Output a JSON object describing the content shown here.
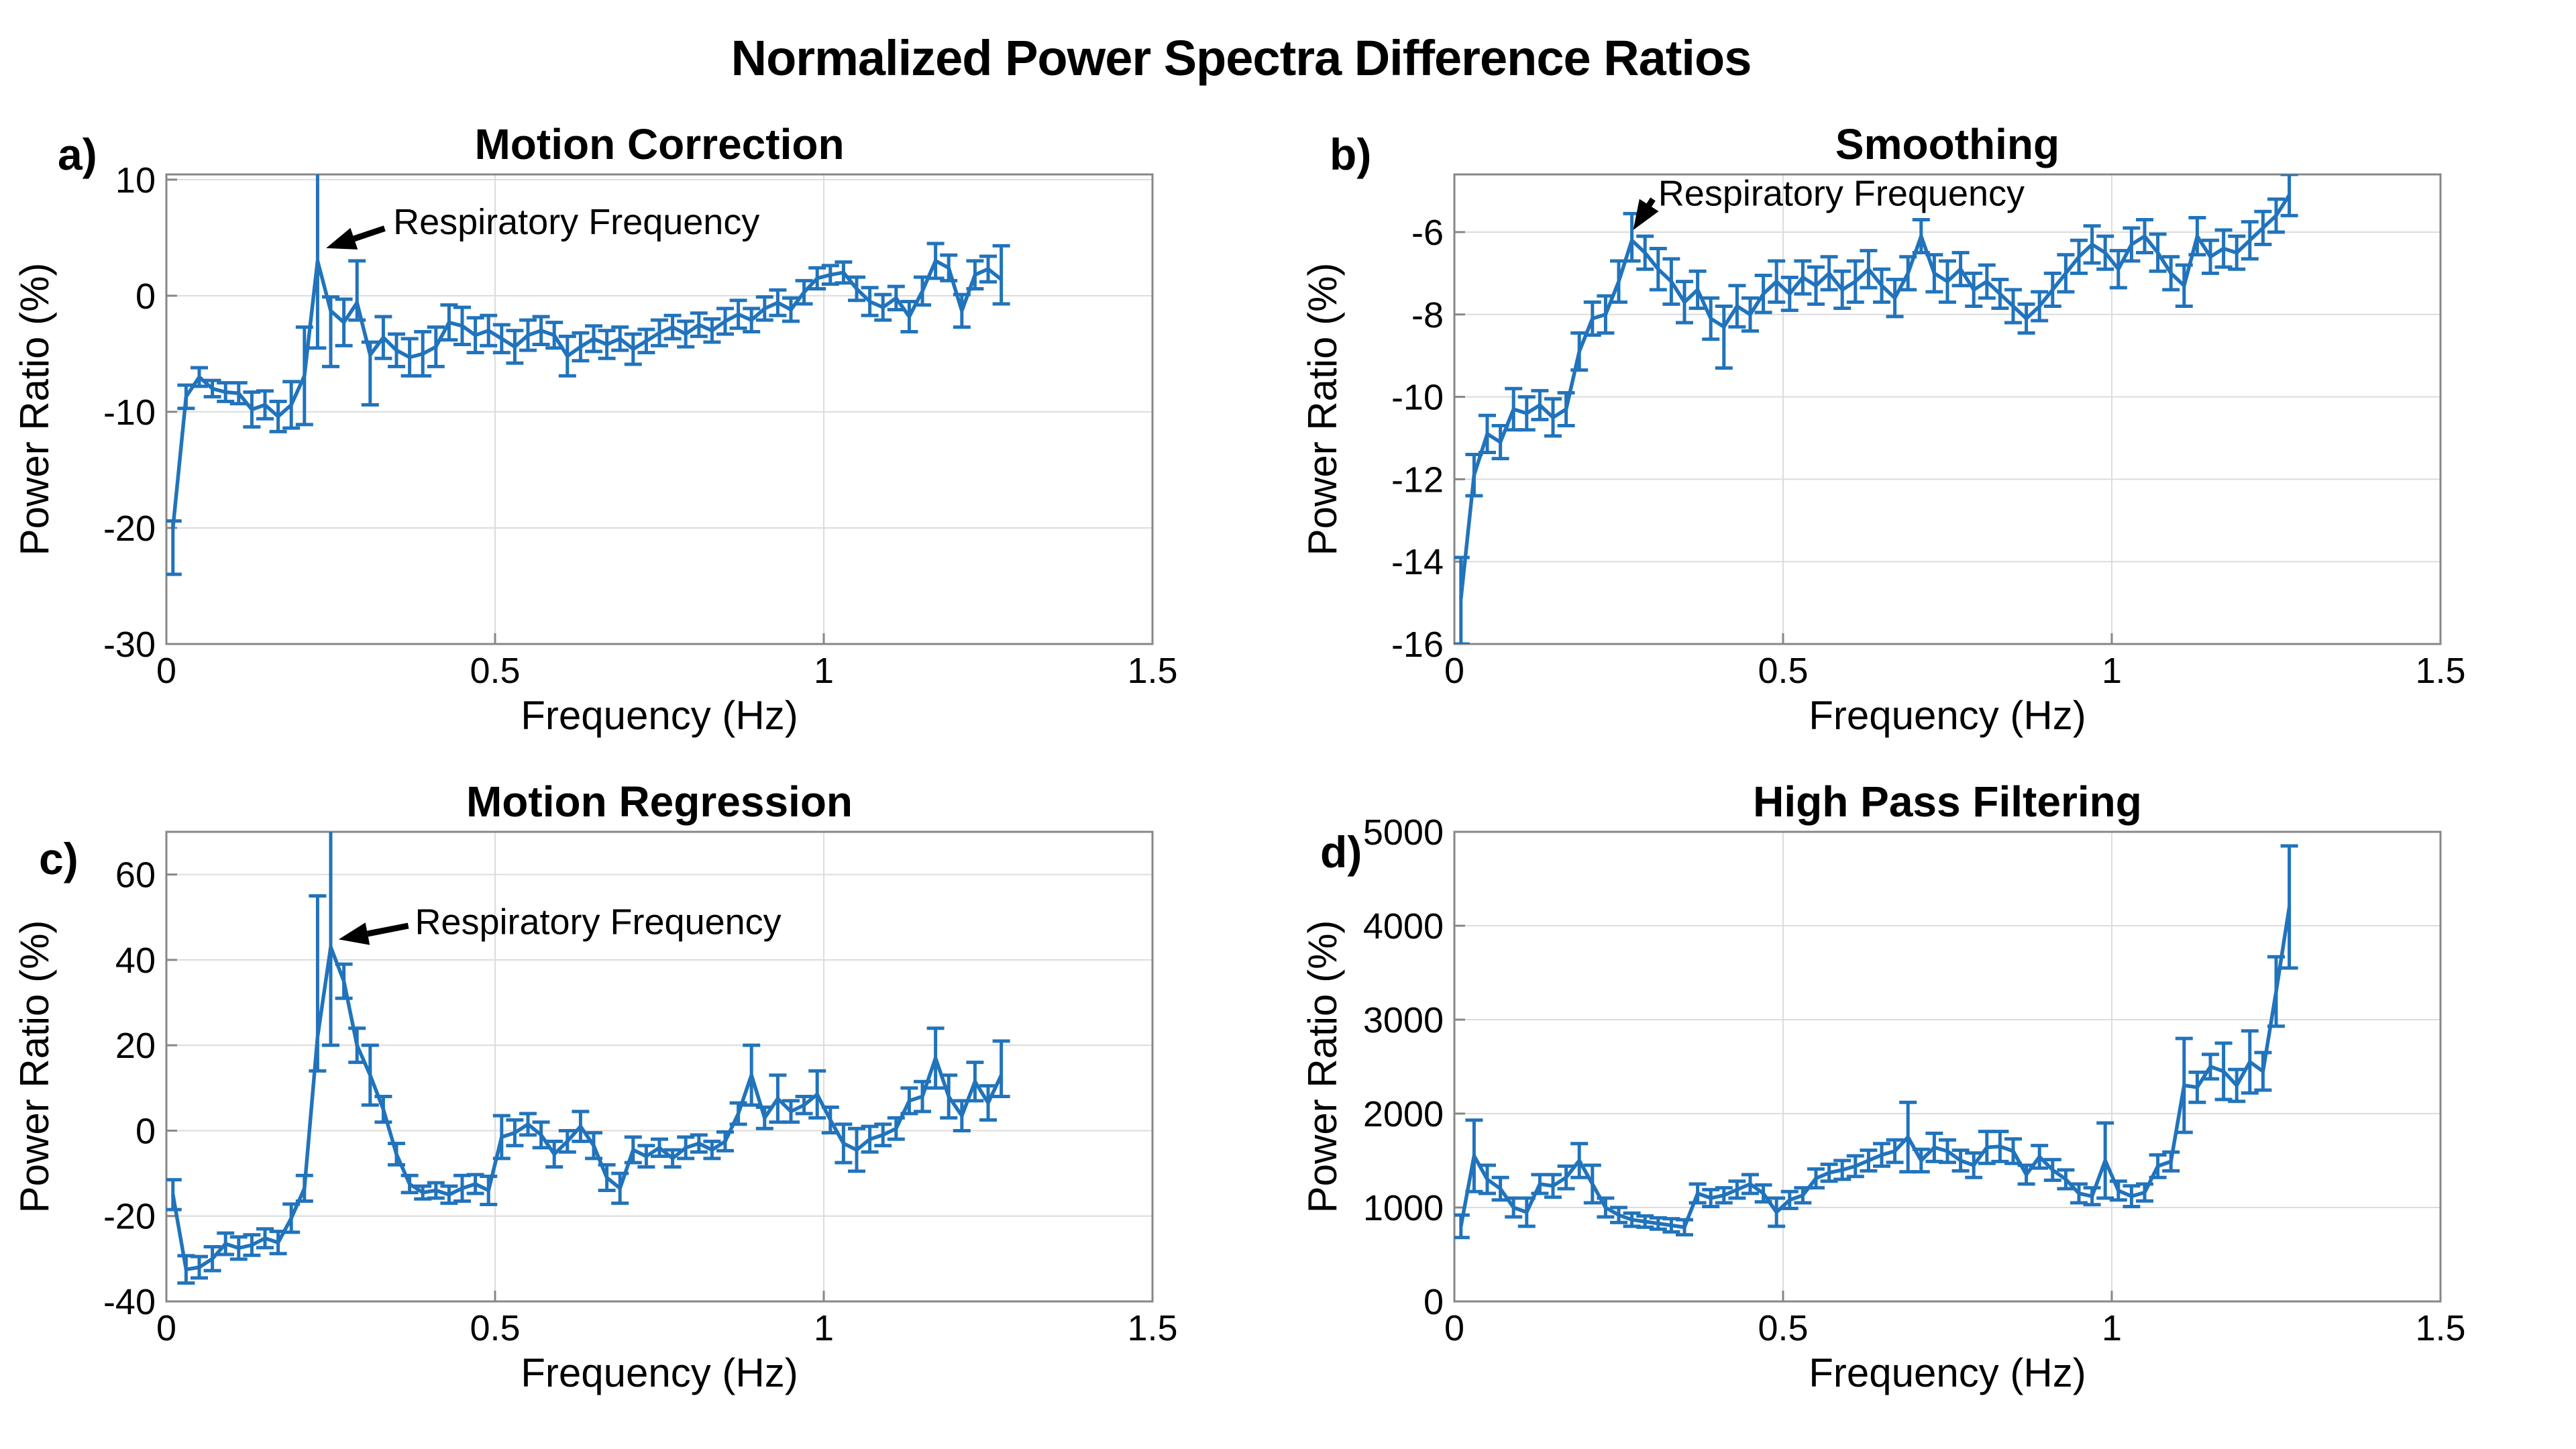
{
  "figure": {
    "title": "Normalized Power Spectra Difference Ratios"
  },
  "chart_data": {
    "type": "line",
    "note": "Four error-bar line plots (mean ± error) of normalized power spectra difference ratios vs frequency",
    "legend_position": "none",
    "grid": true,
    "line_color": "#2173bb",
    "x": [
      0.01,
      0.03,
      0.05,
      0.07,
      0.09,
      0.11,
      0.13,
      0.15,
      0.17,
      0.19,
      0.21,
      0.23,
      0.25,
      0.27,
      0.29,
      0.31,
      0.33,
      0.35,
      0.37,
      0.39,
      0.41,
      0.43,
      0.45,
      0.47,
      0.49,
      0.51,
      0.53,
      0.55,
      0.57,
      0.59,
      0.61,
      0.63,
      0.65,
      0.67,
      0.69,
      0.71,
      0.73,
      0.75,
      0.77,
      0.79,
      0.81,
      0.83,
      0.85,
      0.87,
      0.89,
      0.91,
      0.93,
      0.95,
      0.97,
      0.99,
      1.01,
      1.03,
      1.05,
      1.07,
      1.09,
      1.11,
      1.13,
      1.15,
      1.17,
      1.19,
      1.21,
      1.23,
      1.25,
      1.27
    ],
    "panels": [
      {
        "id": "a",
        "letter": "a)",
        "title": "Motion Correction",
        "xlabel": "Frequency (Hz)",
        "ylabel": "Power Ratio (%)",
        "xlim": [
          0,
          1.5
        ],
        "ylim": [
          -30,
          10.45
        ],
        "xticks": [
          0,
          0.5,
          1,
          1.5
        ],
        "xtick_labels": [
          "0",
          "0.5",
          "1",
          "1.5"
        ],
        "yticks": [
          10,
          0,
          -10,
          -20,
          -30
        ],
        "y": [
          -20.0,
          -8.7,
          -7.0,
          -8.0,
          -8.3,
          -8.4,
          -9.8,
          -9.4,
          -10.4,
          -9.4,
          -6.9,
          3.0,
          -1.3,
          -2.3,
          -0.6,
          -5.1,
          -3.6,
          -4.7,
          -5.3,
          -5.0,
          -4.4,
          -2.3,
          -2.6,
          -3.4,
          -3.0,
          -3.7,
          -4.4,
          -3.4,
          -3.0,
          -3.4,
          -5.2,
          -4.4,
          -3.7,
          -4.2,
          -3.7,
          -4.6,
          -3.9,
          -3.2,
          -2.7,
          -3.3,
          -2.5,
          -3.0,
          -2.2,
          -1.6,
          -2.1,
          -1.1,
          -0.6,
          -1.2,
          0.3,
          1.5,
          1.8,
          2.0,
          0.6,
          -0.5,
          -1.0,
          -0.2,
          -1.8,
          0.4,
          3.0,
          2.4,
          -1.3,
          1.8,
          2.3,
          1.4
        ],
        "e": [
          [
            4.0,
            0.6
          ],
          1.0,
          0.8,
          0.7,
          0.8,
          0.9,
          1.5,
          1.2,
          1.3,
          2.0,
          4.2,
          [
            7.5,
            8.0
          ],
          [
            4.8,
            1.2
          ],
          2.0,
          [
            1.5,
            3.6
          ],
          [
            4.3,
            1.1
          ],
          1.8,
          1.4,
          1.6,
          1.9,
          1.7,
          1.5,
          1.6,
          1.5,
          1.3,
          1.2,
          1.4,
          1.3,
          1.2,
          1.1,
          1.7,
          1.2,
          1.1,
          1.2,
          1.0,
          1.3,
          1.0,
          1.1,
          1.0,
          1.1,
          1.0,
          1.0,
          1.1,
          1.2,
          1.0,
          1.0,
          1.1,
          1.0,
          1.0,
          0.9,
          0.8,
          0.9,
          1.0,
          1.2,
          1.1,
          1.0,
          1.3,
          1.2,
          1.5,
          1.1,
          1.4,
          1.2,
          1.1,
          [
            2.1,
            2.9
          ]
        ],
        "annotation": {
          "text": "Respiratory Frequency",
          "text_x": 0.345,
          "text_y": 6.4,
          "arrow_x1": 0.332,
          "arrow_y1": 5.8,
          "arrow_x2": 0.243,
          "arrow_y2": 4.1
        }
      },
      {
        "id": "b",
        "letter": "b)",
        "title": "Smoothing",
        "xlabel": "Frequency (Hz)",
        "ylabel": "Power Ratio (%)",
        "xlim": [
          0,
          1.5
        ],
        "ylim": [
          -16,
          -4.6
        ],
        "xticks": [
          0,
          0.5,
          1,
          1.5
        ],
        "xtick_labels": [
          "0",
          "0.5",
          "1",
          "1.5"
        ],
        "yticks": [
          -6,
          -8,
          -10,
          -12,
          -14,
          -16
        ],
        "y": [
          -14.9,
          -11.9,
          -10.9,
          -11.1,
          -10.3,
          -10.4,
          -10.2,
          -10.5,
          -10.3,
          -8.9,
          -8.1,
          -8.0,
          -7.2,
          -6.2,
          -6.5,
          -6.9,
          -7.2,
          -7.7,
          -7.4,
          -8.1,
          -8.3,
          -7.8,
          -8.0,
          -7.5,
          -7.2,
          -7.5,
          -7.1,
          -7.3,
          -7.0,
          -7.4,
          -7.2,
          -6.9,
          -7.3,
          -7.6,
          -7.0,
          -6.1,
          -7.0,
          -7.2,
          -6.9,
          -7.4,
          -7.2,
          -7.5,
          -7.8,
          -8.1,
          -7.8,
          -7.4,
          -7.0,
          -6.6,
          -6.3,
          -6.5,
          -6.9,
          -6.3,
          -6.1,
          -6.5,
          -7.0,
          -7.3,
          -6.1,
          -6.6,
          -6.4,
          -6.5,
          -6.2,
          -5.9,
          -5.6,
          -5.1
        ],
        "e": [
          [
            1.1,
            1.0
          ],
          0.5,
          0.45,
          0.4,
          0.5,
          0.4,
          0.35,
          0.45,
          0.4,
          0.45,
          0.4,
          0.45,
          0.5,
          [
            0.5,
            0.65
          ],
          0.4,
          0.5,
          0.55,
          0.5,
          0.45,
          0.5,
          [
            1.0,
            0.5
          ],
          0.5,
          0.4,
          0.45,
          0.5,
          0.4,
          0.4,
          0.45,
          0.4,
          0.45,
          0.5,
          0.45,
          0.4,
          0.45,
          0.4,
          0.4,
          0.45,
          0.5,
          0.4,
          0.4,
          0.4,
          0.35,
          0.4,
          0.35,
          0.35,
          0.4,
          0.45,
          0.4,
          0.45,
          0.4,
          0.45,
          0.4,
          0.4,
          0.45,
          0.4,
          0.5,
          0.45,
          0.4,
          0.45,
          0.4,
          0.45,
          0.4,
          0.4,
          0.5
        ],
        "annotation": {
          "text": "Respiratory Frequency",
          "text_x": 0.31,
          "text_y": -5.05,
          "arrow_x1": 0.302,
          "arrow_y1": -5.2,
          "arrow_x2": 0.272,
          "arrow_y2": -5.95
        }
      },
      {
        "id": "c",
        "letter": "c)",
        "title": "Motion Regression",
        "xlabel": "Frequency (Hz)",
        "ylabel": "Power Ratio (%)",
        "xlim": [
          0,
          1.5
        ],
        "ylim": [
          -40,
          70
        ],
        "xticks": [
          0,
          0.5,
          1,
          1.5
        ],
        "xtick_labels": [
          "0",
          "0.5",
          "1",
          "1.5"
        ],
        "yticks": [
          60,
          40,
          20,
          0,
          -20,
          -40
        ],
        "y": [
          -15.0,
          -32.5,
          -32.0,
          -30.0,
          -26.5,
          -27.5,
          -26.8,
          -25.2,
          -26.2,
          -20.5,
          -13.5,
          22.0,
          43.0,
          35.0,
          20.0,
          13.0,
          5.0,
          -5.5,
          -12.5,
          -14.5,
          -14.0,
          -15.0,
          -13.5,
          -12.5,
          -14.0,
          -1.5,
          -0.5,
          1.5,
          -1.0,
          -5.5,
          -2.5,
          1.0,
          -3.5,
          -11.0,
          -13.5,
          -4.5,
          -6.0,
          -4.0,
          -6.5,
          -4.0,
          -3.0,
          -4.5,
          -2.5,
          4.0,
          13.0,
          3.0,
          7.5,
          4.5,
          6.0,
          8.5,
          2.5,
          -3.0,
          -4.5,
          -2.0,
          -1.0,
          0.5,
          7.0,
          8.0,
          17.0,
          8.0,
          3.5,
          11.5,
          6.5,
          13.0
        ],
        "e": [
          3.5,
          3.2,
          2.5,
          2.8,
          2.5,
          2.6,
          2.4,
          2.2,
          2.6,
          3.3,
          3.0,
          [
            8,
            33
          ],
          [
            23,
            29
          ],
          4.0,
          4.0,
          7.0,
          3.0,
          2.5,
          2.0,
          1.5,
          1.8,
          2.0,
          3.0,
          2.2,
          3.3,
          5.0,
          3.0,
          2.5,
          3.0,
          3.0,
          2.5,
          3.5,
          3.0,
          3.0,
          3.5,
          3.0,
          2.5,
          2.0,
          2.0,
          2.5,
          2.0,
          2.0,
          2.2,
          2.5,
          7.0,
          2.5,
          5.5,
          2.5,
          2.0,
          5.5,
          3.0,
          4.5,
          5.0,
          3.0,
          2.5,
          2.5,
          3.0,
          3.5,
          7.0,
          5.0,
          3.5,
          4.5,
          4.0,
          [
            5,
            8
          ]
        ],
        "annotation": {
          "text": "Respiratory Frequency",
          "text_x": 0.378,
          "text_y": 49.0,
          "arrow_x1": 0.368,
          "arrow_y1": 48.0,
          "arrow_x2": 0.262,
          "arrow_y2": 44.8
        }
      },
      {
        "id": "d",
        "letter": "d)",
        "title": "High Pass Filtering",
        "xlabel": "Frequency (Hz)",
        "ylabel": "Power Ratio (%)",
        "xlim": [
          0,
          1.5
        ],
        "ylim": [
          0,
          5000
        ],
        "xticks": [
          0,
          0.5,
          1,
          1.5
        ],
        "xtick_labels": [
          "0",
          "0.5",
          "1",
          "1.5"
        ],
        "yticks": [
          5000,
          4000,
          3000,
          2000,
          1000,
          0
        ],
        "y": [
          800,
          1550,
          1300,
          1200,
          1000,
          950,
          1250,
          1230,
          1320,
          1500,
          1250,
          1000,
          920,
          870,
          850,
          830,
          810,
          790,
          1150,
          1100,
          1130,
          1190,
          1250,
          1150,
          950,
          1080,
          1130,
          1310,
          1370,
          1400,
          1440,
          1500,
          1560,
          1600,
          1750,
          1500,
          1640,
          1600,
          1500,
          1450,
          1640,
          1650,
          1600,
          1350,
          1540,
          1400,
          1300,
          1150,
          1120,
          1500,
          1180,
          1120,
          1160,
          1440,
          1490,
          2300,
          2280,
          2500,
          2450,
          2300,
          2550,
          2450,
          3300,
          4200
        ],
        "e": [
          120,
          380,
          150,
          120,
          100,
          150,
          100,
          120,
          120,
          180,
          200,
          100,
          80,
          70,
          60,
          60,
          70,
          80,
          100,
          90,
          80,
          90,
          100,
          90,
          150,
          90,
          80,
          100,
          90,
          100,
          110,
          110,
          120,
          120,
          370,
          120,
          150,
          120,
          110,
          130,
          170,
          160,
          130,
          100,
          120,
          110,
          100,
          100,
          90,
          400,
          100,
          110,
          90,
          120,
          100,
          500,
          160,
          130,
          300,
          170,
          330,
          200,
          370,
          650
        ],
        "annotation": null
      }
    ]
  }
}
